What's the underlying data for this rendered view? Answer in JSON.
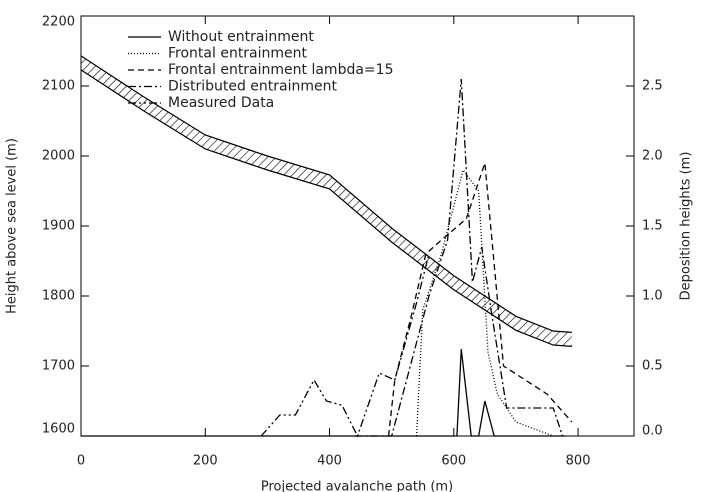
{
  "chart_data": {
    "type": "line",
    "x_label": "Projected avalanche path (m)",
    "y_label": "Height above sea level (m)",
    "y2_label": "Deposition heights (m)",
    "xlim": [
      0,
      890
    ],
    "xticks": [
      0,
      200,
      400,
      600,
      800
    ],
    "ylim": [
      1600,
      2200
    ],
    "yticks": [
      1600,
      1700,
      1800,
      1900,
      2000,
      2100,
      2200
    ],
    "y2lim": [
      0,
      3.0
    ],
    "y2ticks": [
      {
        "value": 0,
        "label": "0.0"
      },
      {
        "value": 0.5,
        "label": "0.5"
      },
      {
        "value": 1,
        "label": "1.0"
      },
      {
        "value": 1.5,
        "label": "1.5"
      },
      {
        "value": 2,
        "label": "2.0"
      },
      {
        "value": 2.5,
        "label": "2.5"
      }
    ],
    "legend": "upper left",
    "terrain": {
      "x": [
        0,
        100,
        200,
        300,
        400,
        500,
        600,
        700,
        760,
        790
      ],
      "upper": [
        2143,
        2085,
        2030,
        2000,
        1973,
        1897,
        1829,
        1771,
        1750,
        1748
      ],
      "lower": [
        2123,
        2065,
        2010,
        1980,
        1953,
        1877,
        1809,
        1751,
        1730,
        1728
      ]
    },
    "series": [
      {
        "name": "Without entrainment",
        "color": "#000000",
        "dash": "solid",
        "axis": "y2",
        "x": [
          0,
          605,
          612,
          628,
          640,
          650,
          665,
          780
        ],
        "values": [
          0,
          0,
          0.62,
          0,
          0,
          0.25,
          0,
          0
        ]
      },
      {
        "name": "Frontal entrainment",
        "color": "#000000",
        "dash": "dotted",
        "axis": "y2",
        "x": [
          540,
          550,
          580,
          615,
          640,
          655,
          670,
          700,
          760
        ],
        "values": [
          0,
          0.9,
          1.3,
          1.9,
          1.75,
          0.6,
          0.3,
          0.1,
          0
        ]
      },
      {
        "name": "Frontal entrainment lambda=15",
        "color": "#000000",
        "dash": "dashed",
        "axis": "y2",
        "x": [
          495,
          505,
          530,
          555,
          580,
          620,
          650,
          680,
          750,
          790
        ],
        "values": [
          0,
          0.4,
          0.83,
          1.3,
          1.4,
          1.55,
          1.95,
          0.5,
          0.3,
          0.1
        ]
      },
      {
        "name": "Distributed entrainment",
        "color": "#000000",
        "dash": "dashdot",
        "axis": "y2",
        "x": [
          440,
          500,
          530,
          560,
          590,
          612,
          630,
          645,
          660,
          685,
          720,
          760,
          775
        ],
        "values": [
          0,
          0,
          0.5,
          1.0,
          1.4,
          2.55,
          1.1,
          1.35,
          0.9,
          0.2,
          0.2,
          0.2,
          0
        ]
      },
      {
        "name": "Measured Data",
        "color": "#000000",
        "dash": "dashdotdot",
        "axis": "y2",
        "x": [
          290,
          320,
          345,
          375,
          395,
          420,
          445,
          480,
          505,
          540,
          560
        ],
        "values": [
          0,
          0.15,
          0.15,
          0.4,
          0.25,
          0.22,
          0,
          0.45,
          0.4,
          0.95,
          1.3
        ]
      }
    ]
  }
}
